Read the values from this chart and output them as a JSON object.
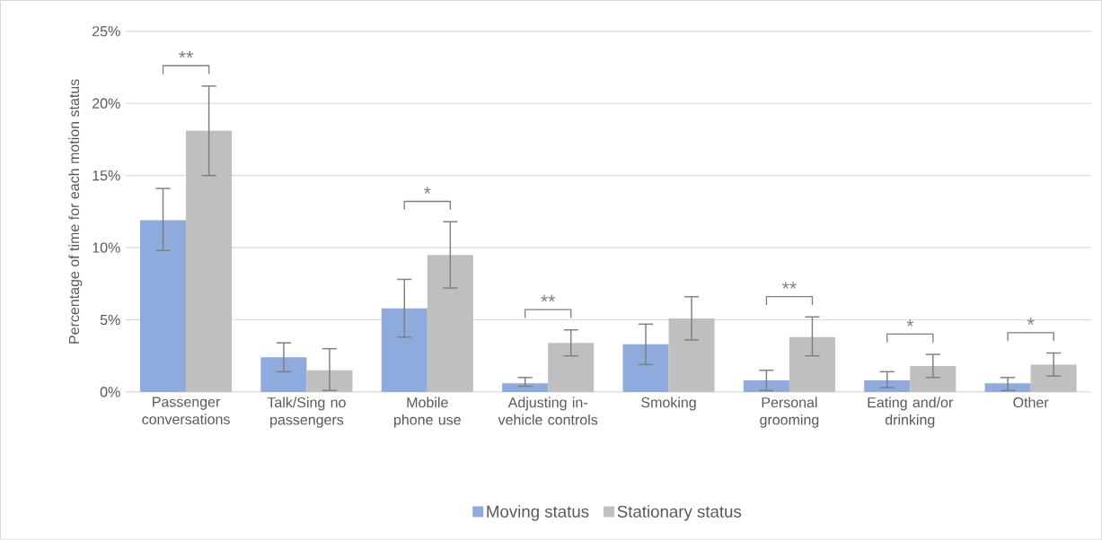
{
  "chart_data": {
    "type": "bar",
    "ylabel": "Percentage of time for each motion status",
    "categories": [
      "Passenger conversations",
      "Talk/Sing no passengers",
      "Mobile phone use",
      "Adjusting in-vehicle controls",
      "Smoking",
      "Personal grooming",
      "Eating and/or drinking",
      "Other"
    ],
    "series": [
      {
        "name": "Moving status",
        "color": "#8faadc",
        "values": [
          11.9,
          2.4,
          5.8,
          0.6,
          3.3,
          0.8,
          0.8,
          0.6
        ],
        "errors": [
          [
            9.8,
            14.1
          ],
          [
            1.4,
            3.4
          ],
          [
            3.8,
            7.8
          ],
          [
            0.4,
            1.0
          ],
          [
            1.9,
            4.7
          ],
          [
            0.1,
            1.5
          ],
          [
            0.3,
            1.4
          ],
          [
            0.1,
            1.0
          ]
        ]
      },
      {
        "name": "Stationary status",
        "color": "#bfbfbf",
        "values": [
          18.1,
          1.5,
          9.5,
          3.4,
          5.1,
          3.8,
          1.8,
          1.9
        ],
        "errors": [
          [
            15.0,
            21.2
          ],
          [
            0.1,
            3.0
          ],
          [
            7.2,
            11.8
          ],
          [
            2.5,
            4.3
          ],
          [
            3.6,
            6.6
          ],
          [
            2.5,
            5.2
          ],
          [
            1.0,
            2.6
          ],
          [
            1.1,
            2.7
          ]
        ]
      }
    ],
    "ylim": [
      0,
      25
    ],
    "yticks": [
      {
        "value": 0,
        "label": "0%"
      },
      {
        "value": 5,
        "label": "5%"
      },
      {
        "value": 10,
        "label": "10%"
      },
      {
        "value": 15,
        "label": "15%"
      },
      {
        "value": 20,
        "label": "20%"
      },
      {
        "value": 25,
        "label": "25%"
      }
    ],
    "grid": "y",
    "legend": "bottom",
    "annotations": [
      "**",
      "*",
      "**",
      "**",
      "*",
      "*"
    ]
  }
}
